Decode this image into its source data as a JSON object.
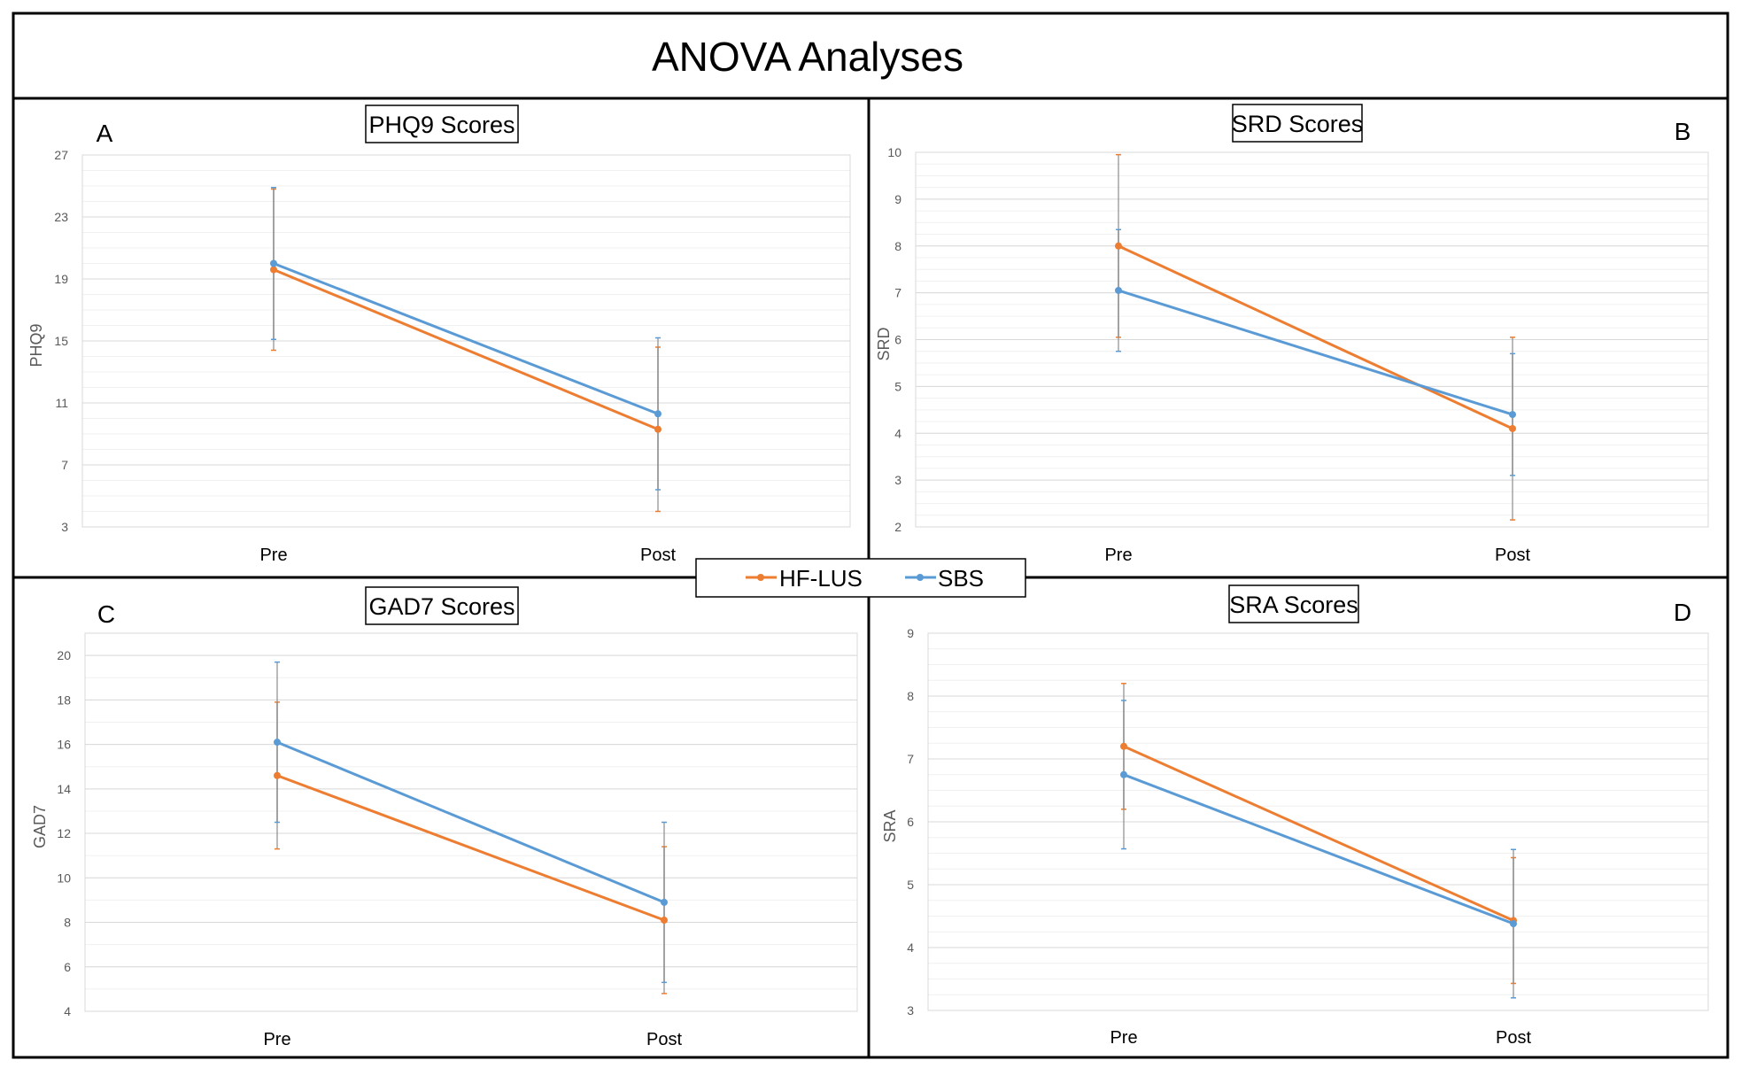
{
  "figure_title": "ANOVA Analyses",
  "legend": [
    {
      "label": "HF-LUS",
      "color": "#ED7D31"
    },
    {
      "label": "SBS",
      "color": "#5B9BD5"
    }
  ],
  "colors": {
    "grid": "#d9d9d9",
    "errorbar_gray": "#8c8c8c",
    "axis_text": "#595959"
  },
  "chart_data": [
    {
      "panel": "A",
      "type": "line",
      "title": "PHQ9 Scores",
      "categories": [
        "Pre",
        "Post"
      ],
      "xlabel": "",
      "ylabel": "PHQ9",
      "ylim": [
        3,
        27
      ],
      "yticks": [
        3,
        7,
        11,
        15,
        19,
        23,
        27
      ],
      "minor_step": 1,
      "series": [
        {
          "name": "HF-LUS",
          "values": [
            19.6,
            9.3
          ],
          "error": [
            5.2,
            5.3
          ]
        },
        {
          "name": "SBS",
          "values": [
            20.0,
            10.3
          ],
          "error": [
            4.9,
            4.9
          ]
        }
      ]
    },
    {
      "panel": "B",
      "type": "line",
      "title": "SRD Scores",
      "categories": [
        "Pre",
        "Post"
      ],
      "xlabel": "",
      "ylabel": "SRD",
      "ylim": [
        2,
        10
      ],
      "yticks": [
        2,
        3,
        4,
        5,
        6,
        7,
        8,
        9,
        10
      ],
      "minor_step": 0.25,
      "series": [
        {
          "name": "HF-LUS",
          "values": [
            8.0,
            4.1
          ],
          "error": [
            1.95,
            1.95
          ]
        },
        {
          "name": "SBS",
          "values": [
            7.05,
            4.4
          ],
          "error": [
            1.3,
            1.3
          ]
        }
      ]
    },
    {
      "panel": "C",
      "type": "line",
      "title": "GAD7 Scores",
      "categories": [
        "Pre",
        "Post"
      ],
      "xlabel": "",
      "ylabel": "GAD7",
      "ylim": [
        4,
        21
      ],
      "yticks": [
        4,
        6,
        8,
        10,
        12,
        14,
        16,
        18,
        20
      ],
      "minor_step": 1,
      "series": [
        {
          "name": "HF-LUS",
          "values": [
            14.6,
            8.1
          ],
          "error": [
            3.3,
            3.3
          ]
        },
        {
          "name": "SBS",
          "values": [
            16.1,
            8.9
          ],
          "error": [
            3.6,
            3.6
          ]
        }
      ]
    },
    {
      "panel": "D",
      "type": "line",
      "title": "SRA Scores",
      "categories": [
        "Pre",
        "Post"
      ],
      "xlabel": "",
      "ylabel": "SRA",
      "ylim": [
        3,
        9
      ],
      "yticks": [
        3,
        4,
        5,
        6,
        7,
        8,
        9
      ],
      "minor_step": 0.25,
      "series": [
        {
          "name": "HF-LUS",
          "values": [
            7.2,
            4.43
          ],
          "error": [
            1.0,
            1.0
          ]
        },
        {
          "name": "SBS",
          "values": [
            6.75,
            4.38
          ],
          "error": [
            1.18,
            1.18
          ]
        }
      ]
    }
  ]
}
